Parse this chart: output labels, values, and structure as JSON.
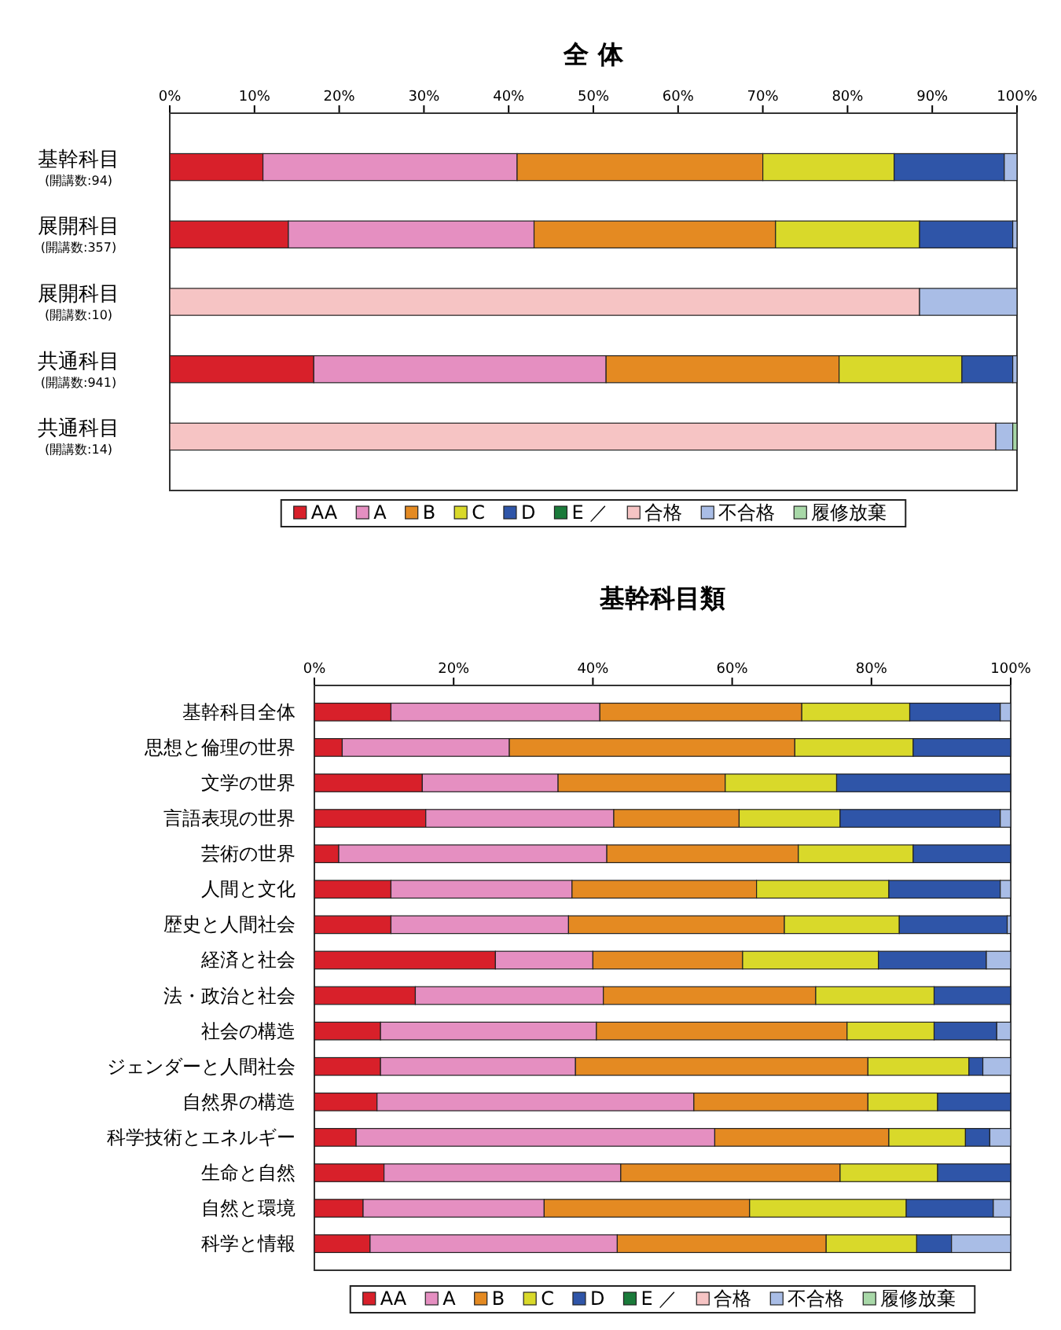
{
  "chart_data": [
    {
      "type": "bar",
      "orientation": "horizontal",
      "stacked": true,
      "title": "全 体",
      "categories": [
        "基幹科目\n(開講数:94)",
        "展開科目\n(開講数:357)",
        "展開科目\n(開講数:10)",
        "共通科目\n(開講数:941)",
        "共通科目\n(開講数:14)"
      ],
      "xlim": [
        0,
        100
      ],
      "xticks": [
        {
          "value": 0,
          "label": "0%"
        },
        {
          "value": 10,
          "label": "10%"
        },
        {
          "value": 20,
          "label": "20%"
        },
        {
          "value": 30,
          "label": "30%"
        },
        {
          "value": 40,
          "label": "40%"
        },
        {
          "value": 50,
          "label": "50%"
        },
        {
          "value": 60,
          "label": "60%"
        },
        {
          "value": 70,
          "label": "70%"
        },
        {
          "value": 80,
          "label": "80%"
        },
        {
          "value": 90,
          "label": "90%"
        },
        {
          "value": 100,
          "label": "100%"
        }
      ],
      "legend": "bottom",
      "grid": false,
      "series": [
        {
          "name": "AA",
          "color": "#d8202a",
          "values": [
            11,
            14,
            null,
            17,
            null
          ]
        },
        {
          "name": "A",
          "color": "#e58fc1",
          "values": [
            30,
            29,
            null,
            34.5,
            null
          ]
        },
        {
          "name": "B",
          "color": "#e48a22",
          "values": [
            29,
            28.5,
            null,
            27.5,
            null
          ]
        },
        {
          "name": "C",
          "color": "#d9d92a",
          "values": [
            15.5,
            17,
            null,
            14.5,
            null
          ]
        },
        {
          "name": "D",
          "color": "#2f55a8",
          "values": [
            13,
            11,
            null,
            6,
            null
          ]
        },
        {
          "name": "E ／",
          "color": "#1a7a3a",
          "values": [
            null,
            null,
            null,
            null,
            null
          ]
        },
        {
          "name": "合格",
          "color": "#f6c4c4",
          "values": [
            null,
            null,
            88.5,
            null,
            97.5
          ]
        },
        {
          "name": "不合格",
          "color": "#a9bde6",
          "values": [
            1.5,
            0.5,
            11.5,
            0.5,
            2
          ]
        },
        {
          "name": "履修放棄",
          "color": "#a8d8a8",
          "values": [
            null,
            null,
            null,
            null,
            0.5
          ]
        }
      ]
    },
    {
      "type": "bar",
      "orientation": "horizontal",
      "stacked": true,
      "title": "基幹科目類",
      "categories": [
        "基幹科目全体",
        "思想と倫理の世界",
        "文学の世界",
        "言語表現の世界",
        "芸術の世界",
        "人間と文化",
        "歴史と人間社会",
        "経済と社会",
        "法・政治と社会",
        "社会の構造",
        "ジェンダーと人間社会",
        "自然界の構造",
        "科学技術とエネルギー",
        "生命と自然",
        "自然と環境",
        "科学と情報"
      ],
      "xlim": [
        0,
        100
      ],
      "xticks": [
        {
          "value": 0,
          "label": "0%"
        },
        {
          "value": 20,
          "label": "20%"
        },
        {
          "value": 40,
          "label": "40%"
        },
        {
          "value": 60,
          "label": "60%"
        },
        {
          "value": 80,
          "label": "80%"
        },
        {
          "value": 100,
          "label": "100%"
        }
      ],
      "legend": "bottom",
      "grid": false,
      "series": [
        {
          "name": "AA",
          "color": "#d8202a",
          "values": [
            11,
            4,
            15.5,
            16,
            3.5,
            11,
            11,
            26,
            14.5,
            9.5,
            9.5,
            9,
            6,
            10,
            7,
            8
          ]
        },
        {
          "name": "A",
          "color": "#e58fc1",
          "values": [
            30,
            24,
            19.5,
            27,
            38.5,
            26,
            25.5,
            14,
            27,
            31,
            28,
            45.5,
            51.5,
            34,
            26,
            35.5
          ]
        },
        {
          "name": "B",
          "color": "#e48a22",
          "values": [
            29,
            41,
            24,
            18,
            27.5,
            26.5,
            31,
            21.5,
            30.5,
            36,
            42,
            25,
            25,
            31.5,
            29.5,
            30
          ]
        },
        {
          "name": "C",
          "color": "#d9d92a",
          "values": [
            15.5,
            17,
            16,
            14.5,
            16.5,
            19,
            16.5,
            19.5,
            17,
            12.5,
            14.5,
            10,
            11,
            14,
            22.5,
            13
          ]
        },
        {
          "name": "D",
          "color": "#2f55a8",
          "values": [
            13,
            14,
            25,
            23,
            14,
            16,
            15.5,
            15.5,
            11,
            9,
            2,
            10.5,
            3.5,
            10.5,
            12.5,
            5
          ]
        },
        {
          "name": "E ／",
          "color": "#1a7a3a",
          "values": [
            null,
            null,
            null,
            null,
            null,
            null,
            null,
            null,
            null,
            null,
            null,
            null,
            null,
            null,
            null,
            null
          ]
        },
        {
          "name": "合格",
          "color": "#f6c4c4",
          "values": [
            null,
            null,
            null,
            null,
            null,
            null,
            null,
            null,
            null,
            null,
            null,
            null,
            null,
            null,
            null,
            null
          ]
        },
        {
          "name": "不合格",
          "color": "#a9bde6",
          "values": [
            1.5,
            null,
            null,
            1.5,
            null,
            1.5,
            0.5,
            3.5,
            null,
            2,
            4,
            null,
            3,
            null,
            2.5,
            8.5
          ]
        },
        {
          "name": "履修放棄",
          "color": "#a8d8a8",
          "values": [
            null,
            null,
            null,
            null,
            null,
            null,
            null,
            null,
            null,
            null,
            null,
            null,
            null,
            null,
            null,
            null
          ]
        }
      ]
    }
  ]
}
